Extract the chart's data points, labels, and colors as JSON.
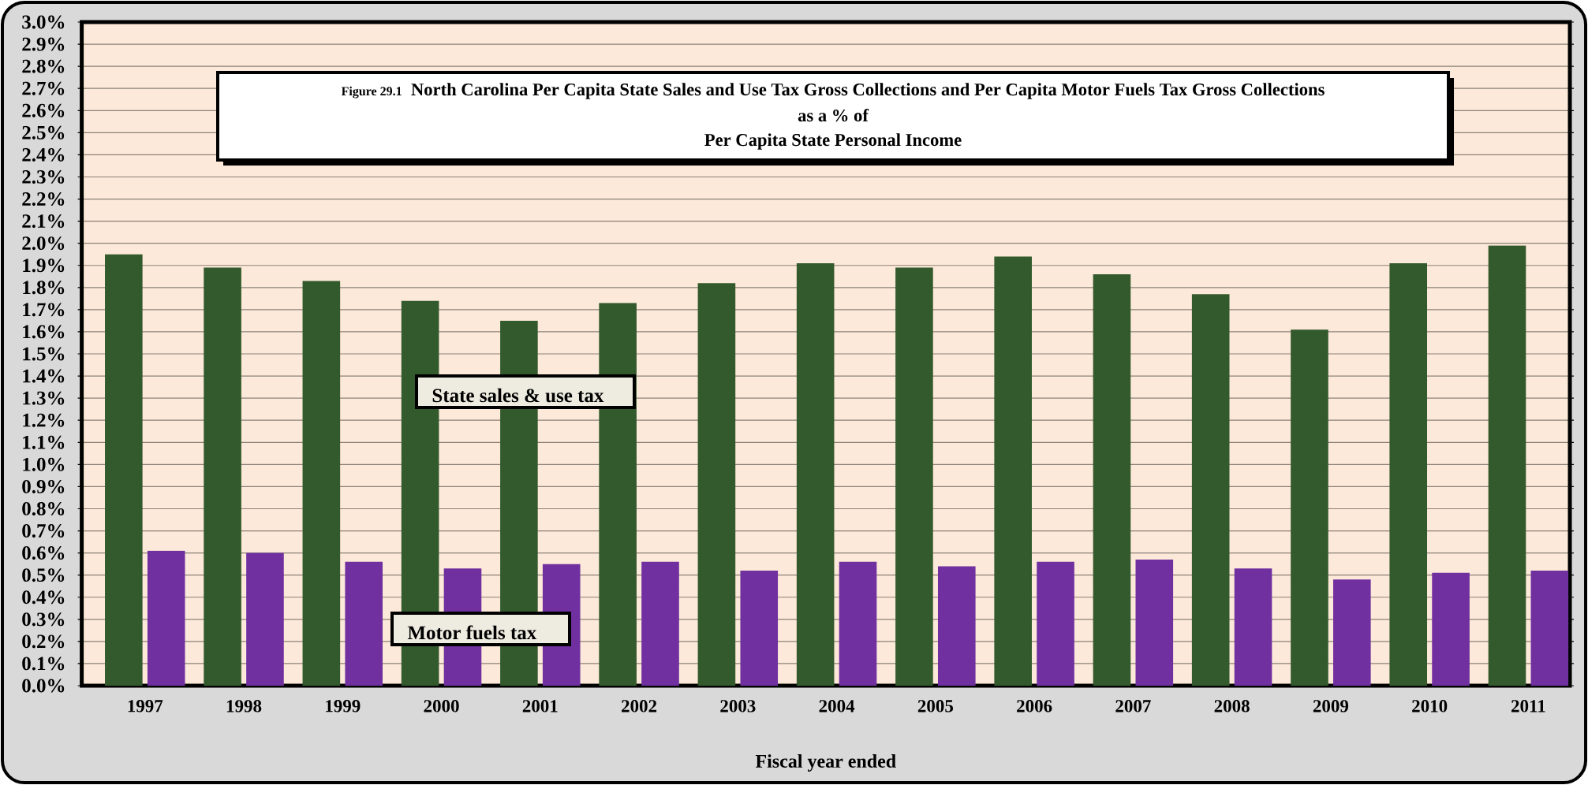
{
  "chart_data": {
    "type": "bar",
    "title": "North Carolina Per Capita State Sales and Use Tax Gross Collections and Per Capita Motor Fuels Tax Gross Collections",
    "subtitle": "as a % of Per Capita State Personal Income",
    "xlabel": "Fiscal year ended",
    "annotations": [
      "Figure 29.1"
    ],
    "categories": [
      "1997",
      "1998",
      "1999",
      "2000",
      "2001",
      "2002",
      "2003",
      "2004",
      "2005",
      "2006",
      "2007",
      "2008",
      "2009",
      "2010",
      "2011"
    ],
    "series": [
      {
        "name": "State sales & use tax",
        "color": "#335a2d",
        "values": [
          1.95,
          1.89,
          1.83,
          1.74,
          1.65,
          1.73,
          1.82,
          1.91,
          1.89,
          1.94,
          1.86,
          1.77,
          1.61,
          1.91,
          1.99
        ]
      },
      {
        "name": "Motor fuels tax",
        "color": "#7030a0",
        "values": [
          0.61,
          0.6,
          0.56,
          0.53,
          0.55,
          0.56,
          0.52,
          0.56,
          0.54,
          0.56,
          0.57,
          0.53,
          0.48,
          0.51,
          0.52
        ]
      }
    ],
    "ylim": [
      0,
      3.0
    ],
    "yticks": [
      {
        "value": 0,
        "label": "0.0%"
      },
      {
        "value": 0.1,
        "label": "0.1%"
      },
      {
        "value": 0.2,
        "label": "0.2%"
      },
      {
        "value": 0.3,
        "label": "0.3%"
      },
      {
        "value": 0.4,
        "label": "0.4%"
      },
      {
        "value": 0.5,
        "label": "0.5%"
      },
      {
        "value": 0.6,
        "label": "0.6%"
      },
      {
        "value": 0.7,
        "label": "0.7%"
      },
      {
        "value": 0.8,
        "label": "0.8%"
      },
      {
        "value": 0.9,
        "label": "0.9%"
      },
      {
        "value": 1.0,
        "label": "1.0%"
      },
      {
        "value": 1.1,
        "label": "1.1%"
      },
      {
        "value": 1.2,
        "label": "1.2%"
      },
      {
        "value": 1.3,
        "label": "1.3%"
      },
      {
        "value": 1.4,
        "label": "1.4%"
      },
      {
        "value": 1.5,
        "label": "1.5%"
      },
      {
        "value": 1.6,
        "label": "1.6%"
      },
      {
        "value": 1.7,
        "label": "1.7%"
      },
      {
        "value": 1.8,
        "label": "1.8%"
      },
      {
        "value": 1.9,
        "label": "1.9%"
      },
      {
        "value": 2.0,
        "label": "2.0%"
      },
      {
        "value": 2.1,
        "label": "2.1%"
      },
      {
        "value": 2.2,
        "label": "2.2%"
      },
      {
        "value": 2.3,
        "label": "2.3%"
      },
      {
        "value": 2.4,
        "label": "2.4%"
      },
      {
        "value": 2.5,
        "label": "2.5%"
      },
      {
        "value": 2.6,
        "label": "2.6%"
      },
      {
        "value": 2.7,
        "label": "2.7%"
      },
      {
        "value": 2.8,
        "label": "2.8%"
      },
      {
        "value": 2.9,
        "label": "2.9%"
      },
      {
        "value": 3.0,
        "label": "3.0%"
      }
    ],
    "grid": "y"
  }
}
